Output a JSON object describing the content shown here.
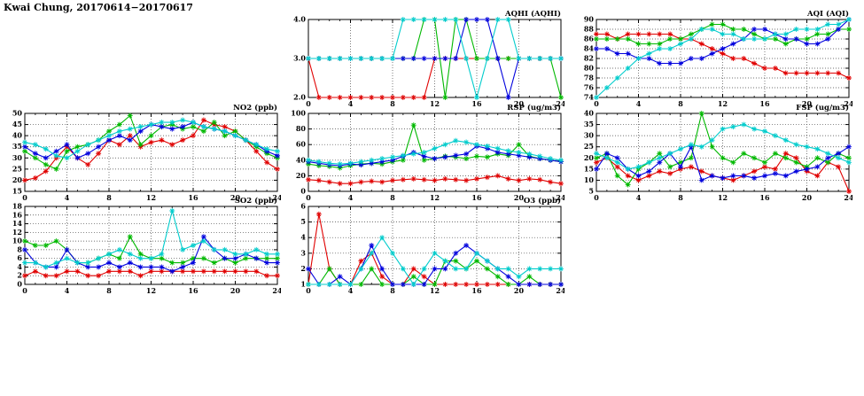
{
  "page": {
    "title": "Kwai Chung, 20170614−20170617"
  },
  "chart_data": [
    {
      "id": "aqhi",
      "type": "line",
      "title": "AQHI (AQHI)",
      "x": {
        "min": 0,
        "max": 24,
        "major_ticks": [
          0,
          4,
          8,
          12,
          16,
          20,
          24
        ],
        "minor_step": 1,
        "tick_labels": [
          "0",
          "4",
          "8",
          "12",
          "16",
          "20",
          "24"
        ]
      },
      "y": {
        "min": 2,
        "max": 4,
        "tick_values": [
          2,
          3,
          4
        ],
        "tick_labels": [
          "2.0",
          "3.0",
          "4.0"
        ]
      },
      "series": [
        {
          "name": "red",
          "color": "#e00000",
          "values": [
            3,
            2,
            2,
            2,
            2,
            2,
            2,
            2,
            2,
            2,
            2,
            2,
            3,
            3,
            3,
            3,
            3,
            3,
            3,
            3,
            3,
            3,
            3,
            3,
            3
          ]
        },
        {
          "name": "green",
          "color": "#00b800",
          "values": [
            3,
            3,
            3,
            3,
            3,
            3,
            3,
            3,
            3,
            3,
            3,
            4,
            4,
            2,
            4,
            4,
            3,
            3,
            3,
            3,
            3,
            3,
            3,
            3,
            2
          ]
        },
        {
          "name": "blue",
          "color": "#0000dd",
          "values": [
            3,
            3,
            3,
            3,
            3,
            3,
            3,
            3,
            3,
            3,
            3,
            3,
            3,
            3,
            3,
            4,
            4,
            4,
            3,
            2,
            3,
            3,
            3,
            3,
            3
          ]
        },
        {
          "name": "cyan",
          "color": "#00cccc",
          "values": [
            3,
            3,
            3,
            3,
            3,
            3,
            3,
            3,
            3,
            4,
            4,
            4,
            4,
            4,
            4,
            3,
            2,
            3,
            4,
            4,
            3,
            3,
            3,
            3,
            3
          ]
        }
      ]
    },
    {
      "id": "aqi",
      "type": "line",
      "title": "AQI (AQI)",
      "x": {
        "min": 0,
        "max": 24,
        "major_ticks": [
          0,
          4,
          8,
          12,
          16,
          20,
          24
        ],
        "minor_step": 1,
        "tick_labels": [
          "0",
          "4",
          "8",
          "12",
          "16",
          "20",
          "24"
        ]
      },
      "y": {
        "min": 74,
        "max": 90,
        "tick_values": [
          74,
          76,
          78,
          80,
          82,
          84,
          86,
          88,
          90
        ],
        "tick_labels": [
          "74",
          "76",
          "78",
          "80",
          "82",
          "84",
          "86",
          "88",
          "90"
        ]
      },
      "series": [
        {
          "name": "red",
          "color": "#e00000",
          "values": [
            87,
            87,
            86,
            87,
            87,
            87,
            87,
            87,
            86,
            86,
            85,
            84,
            83,
            82,
            82,
            81,
            80,
            80,
            79,
            79,
            79,
            79,
            79,
            79,
            78
          ]
        },
        {
          "name": "green",
          "color": "#00b800",
          "values": [
            86,
            86,
            86,
            86,
            85,
            85,
            85,
            86,
            86,
            87,
            88,
            89,
            89,
            88,
            88,
            87,
            86,
            86,
            85,
            86,
            86,
            87,
            87,
            88,
            88
          ]
        },
        {
          "name": "blue",
          "color": "#0000dd",
          "values": [
            84,
            84,
            83,
            83,
            82,
            82,
            81,
            81,
            81,
            82,
            82,
            83,
            84,
            85,
            86,
            88,
            88,
            87,
            86,
            86,
            85,
            85,
            86,
            88,
            90
          ]
        },
        {
          "name": "cyan",
          "color": "#00cccc",
          "values": [
            74,
            76,
            78,
            80,
            82,
            83,
            84,
            84,
            85,
            86,
            88,
            88,
            87,
            87,
            86,
            86,
            86,
            87,
            87,
            88,
            88,
            88,
            89,
            89,
            90
          ]
        }
      ]
    },
    {
      "id": "no2",
      "type": "line",
      "title": "NO2 (ppb)",
      "x": {
        "min": 0,
        "max": 24,
        "major_ticks": [
          0,
          4,
          8,
          12,
          16,
          20,
          24
        ],
        "minor_step": 1,
        "tick_labels": [
          "0",
          "4",
          "8",
          "12",
          "16",
          "20",
          "24"
        ]
      },
      "y": {
        "min": 15,
        "max": 50,
        "tick_values": [
          15,
          20,
          25,
          30,
          35,
          40,
          45,
          50
        ],
        "tick_labels": [
          "15",
          "20",
          "25",
          "30",
          "35",
          "40",
          "45",
          "50"
        ]
      },
      "series": [
        {
          "name": "red",
          "color": "#e00000",
          "values": [
            20,
            21,
            24,
            30,
            35,
            30,
            27,
            32,
            38,
            36,
            40,
            35,
            37,
            38,
            36,
            38,
            40,
            47,
            45,
            44,
            42,
            38,
            33,
            28,
            25
          ]
        },
        {
          "name": "green",
          "color": "#00b800",
          "values": [
            33,
            30,
            27,
            25,
            33,
            35,
            36,
            38,
            42,
            45,
            49,
            36,
            40,
            44,
            45,
            43,
            44,
            42,
            46,
            40,
            42,
            38,
            35,
            32,
            30
          ]
        },
        {
          "name": "blue",
          "color": "#0000dd",
          "values": [
            35,
            32,
            30,
            33,
            36,
            30,
            32,
            35,
            38,
            40,
            38,
            42,
            45,
            44,
            43,
            44,
            46,
            44,
            43,
            42,
            40,
            38,
            36,
            33,
            31
          ]
        },
        {
          "name": "cyan",
          "color": "#00cccc",
          "values": [
            37,
            36,
            34,
            31,
            30,
            33,
            36,
            38,
            40,
            42,
            43,
            44,
            45,
            46,
            46,
            47,
            46,
            44,
            43,
            42,
            40,
            38,
            36,
            34,
            33
          ]
        }
      ]
    },
    {
      "id": "rsp",
      "type": "line",
      "title": "RSP (ug/m3)",
      "x": {
        "min": 0,
        "max": 24,
        "major_ticks": [
          0,
          4,
          8,
          12,
          16,
          20,
          24
        ],
        "minor_step": 1,
        "tick_labels": [
          "0",
          "4",
          "8",
          "12",
          "16",
          "20",
          "24"
        ]
      },
      "y": {
        "min": 0,
        "max": 100,
        "tick_values": [
          0,
          20,
          40,
          60,
          80,
          100
        ],
        "tick_labels": [
          "0",
          "20",
          "40",
          "60",
          "80",
          "100"
        ]
      },
      "series": [
        {
          "name": "red",
          "color": "#e00000",
          "values": [
            15,
            14,
            12,
            10,
            10,
            12,
            13,
            12,
            14,
            15,
            16,
            15,
            14,
            16,
            15,
            14,
            16,
            18,
            20,
            16,
            14,
            16,
            15,
            12,
            10
          ]
        },
        {
          "name": "green",
          "color": "#00b800",
          "values": [
            35,
            33,
            32,
            30,
            33,
            35,
            36,
            35,
            38,
            40,
            85,
            40,
            42,
            45,
            44,
            42,
            45,
            44,
            48,
            46,
            60,
            45,
            42,
            40,
            38
          ]
        },
        {
          "name": "blue",
          "color": "#0000dd",
          "values": [
            38,
            36,
            34,
            33,
            35,
            34,
            36,
            38,
            40,
            45,
            50,
            45,
            42,
            44,
            46,
            48,
            58,
            55,
            50,
            48,
            46,
            44,
            42,
            40,
            38
          ]
        },
        {
          "name": "cyan",
          "color": "#00cccc",
          "values": [
            40,
            38,
            36,
            35,
            36,
            38,
            40,
            42,
            44,
            46,
            48,
            50,
            55,
            60,
            65,
            63,
            60,
            58,
            55,
            52,
            50,
            48,
            45,
            42,
            40
          ]
        }
      ]
    },
    {
      "id": "fsp",
      "type": "line",
      "title": "FSP (ug/m3)",
      "x": {
        "min": 0,
        "max": 24,
        "major_ticks": [
          0,
          4,
          8,
          12,
          16,
          20,
          24
        ],
        "minor_step": 1,
        "tick_labels": [
          "0",
          "4",
          "8",
          "12",
          "16",
          "20",
          "24"
        ]
      },
      "y": {
        "min": 5,
        "max": 40,
        "tick_values": [
          5,
          10,
          15,
          20,
          25,
          30,
          35,
          40
        ],
        "tick_labels": [
          "5",
          "10",
          "15",
          "20",
          "25",
          "30",
          "35",
          "40"
        ]
      },
      "series": [
        {
          "name": "red",
          "color": "#e00000",
          "values": [
            18,
            20,
            16,
            12,
            10,
            12,
            14,
            13,
            15,
            16,
            14,
            12,
            11,
            10,
            12,
            14,
            16,
            15,
            22,
            20,
            14,
            12,
            18,
            16,
            5
          ]
        },
        {
          "name": "green",
          "color": "#00b800",
          "values": [
            20,
            22,
            12,
            8,
            15,
            18,
            22,
            16,
            18,
            20,
            40,
            25,
            20,
            18,
            22,
            20,
            18,
            22,
            20,
            18,
            16,
            20,
            18,
            22,
            20
          ]
        },
        {
          "name": "blue",
          "color": "#0000dd",
          "values": [
            15,
            22,
            20,
            15,
            12,
            14,
            18,
            22,
            16,
            25,
            10,
            12,
            11,
            12,
            12,
            11,
            12,
            13,
            12,
            14,
            15,
            16,
            20,
            22,
            25
          ]
        },
        {
          "name": "cyan",
          "color": "#00cccc",
          "values": [
            22,
            20,
            18,
            15,
            16,
            18,
            20,
            22,
            24,
            26,
            25,
            28,
            33,
            34,
            35,
            33,
            32,
            30,
            28,
            26,
            25,
            24,
            22,
            20,
            18
          ]
        }
      ]
    },
    {
      "id": "so2",
      "type": "line",
      "title": "SO2 (ppb)",
      "x": {
        "min": 0,
        "max": 24,
        "major_ticks": [
          0,
          4,
          8,
          12,
          16,
          20,
          24
        ],
        "minor_step": 1,
        "tick_labels": [
          "0",
          "4",
          "8",
          "12",
          "16",
          "20",
          "24"
        ]
      },
      "y": {
        "min": 0,
        "max": 18,
        "tick_values": [
          0,
          2,
          4,
          6,
          8,
          10,
          12,
          14,
          16,
          18
        ],
        "tick_labels": [
          "0",
          "2",
          "4",
          "6",
          "8",
          "10",
          "12",
          "14",
          "16",
          "18"
        ]
      },
      "series": [
        {
          "name": "red",
          "color": "#e00000",
          "values": [
            2,
            3,
            2,
            2,
            3,
            3,
            2,
            2,
            3,
            3,
            3,
            2,
            3,
            3,
            3,
            3,
            3,
            3,
            3,
            3,
            3,
            3,
            3,
            2,
            2
          ]
        },
        {
          "name": "green",
          "color": "#00b800",
          "values": [
            10,
            9,
            9,
            10,
            8,
            5,
            5,
            6,
            7,
            6,
            11,
            7,
            6,
            6,
            5,
            5,
            6,
            6,
            5,
            6,
            5,
            6,
            6,
            6,
            6
          ]
        },
        {
          "name": "blue",
          "color": "#0000dd",
          "values": [
            8,
            5,
            4,
            4,
            8,
            5,
            4,
            4,
            5,
            4,
            5,
            4,
            4,
            4,
            3,
            4,
            5,
            11,
            8,
            6,
            6,
            7,
            6,
            5,
            5
          ]
        },
        {
          "name": "cyan",
          "color": "#00cccc",
          "values": [
            5,
            5,
            4,
            5,
            6,
            5,
            5,
            6,
            7,
            8,
            7,
            6,
            6,
            7,
            17,
            8,
            9,
            10,
            8,
            8,
            7,
            7,
            8,
            7,
            7
          ]
        }
      ]
    },
    {
      "id": "o3",
      "type": "line",
      "title": "O3 (ppb)",
      "x": {
        "min": 0,
        "max": 24,
        "major_ticks": [
          0,
          4,
          8,
          12,
          16,
          20,
          24
        ],
        "minor_step": 1,
        "tick_labels": [
          "0",
          "4",
          "8",
          "12",
          "16",
          "20",
          "24"
        ]
      },
      "y": {
        "min": 1,
        "max": 6,
        "tick_values": [
          1,
          2,
          3,
          4,
          5,
          6
        ],
        "tick_labels": [
          "1",
          "2",
          "3",
          "4",
          "5",
          "6"
        ]
      },
      "series": [
        {
          "name": "red",
          "color": "#e00000",
          "values": [
            1,
            5.5,
            2,
            1,
            1,
            2.5,
            3,
            1.5,
            1,
            1,
            2,
            1.5,
            1,
            1,
            1,
            1,
            1,
            1,
            1,
            1,
            1,
            1,
            1,
            1,
            1
          ]
        },
        {
          "name": "green",
          "color": "#00b800",
          "values": [
            1,
            1,
            2,
            1,
            1,
            1,
            2,
            1,
            1,
            1,
            1.5,
            1,
            1,
            2.5,
            2.5,
            2,
            2.5,
            2,
            1.5,
            1,
            1,
            1.5,
            1,
            1,
            1
          ]
        },
        {
          "name": "blue",
          "color": "#0000dd",
          "values": [
            2,
            1,
            1,
            1.5,
            1,
            2,
            3.5,
            2,
            1,
            1,
            1,
            1,
            2,
            2,
            3,
            3.5,
            3,
            2.5,
            2,
            1.5,
            1,
            1,
            1,
            1,
            1
          ]
        },
        {
          "name": "cyan",
          "color": "#00cccc",
          "values": [
            1,
            1,
            1,
            1,
            1,
            2,
            3,
            4,
            3,
            2,
            1,
            2,
            3,
            2.5,
            2,
            2,
            3,
            2.5,
            2,
            2,
            1.5,
            2,
            2,
            2,
            2
          ]
        }
      ]
    }
  ]
}
